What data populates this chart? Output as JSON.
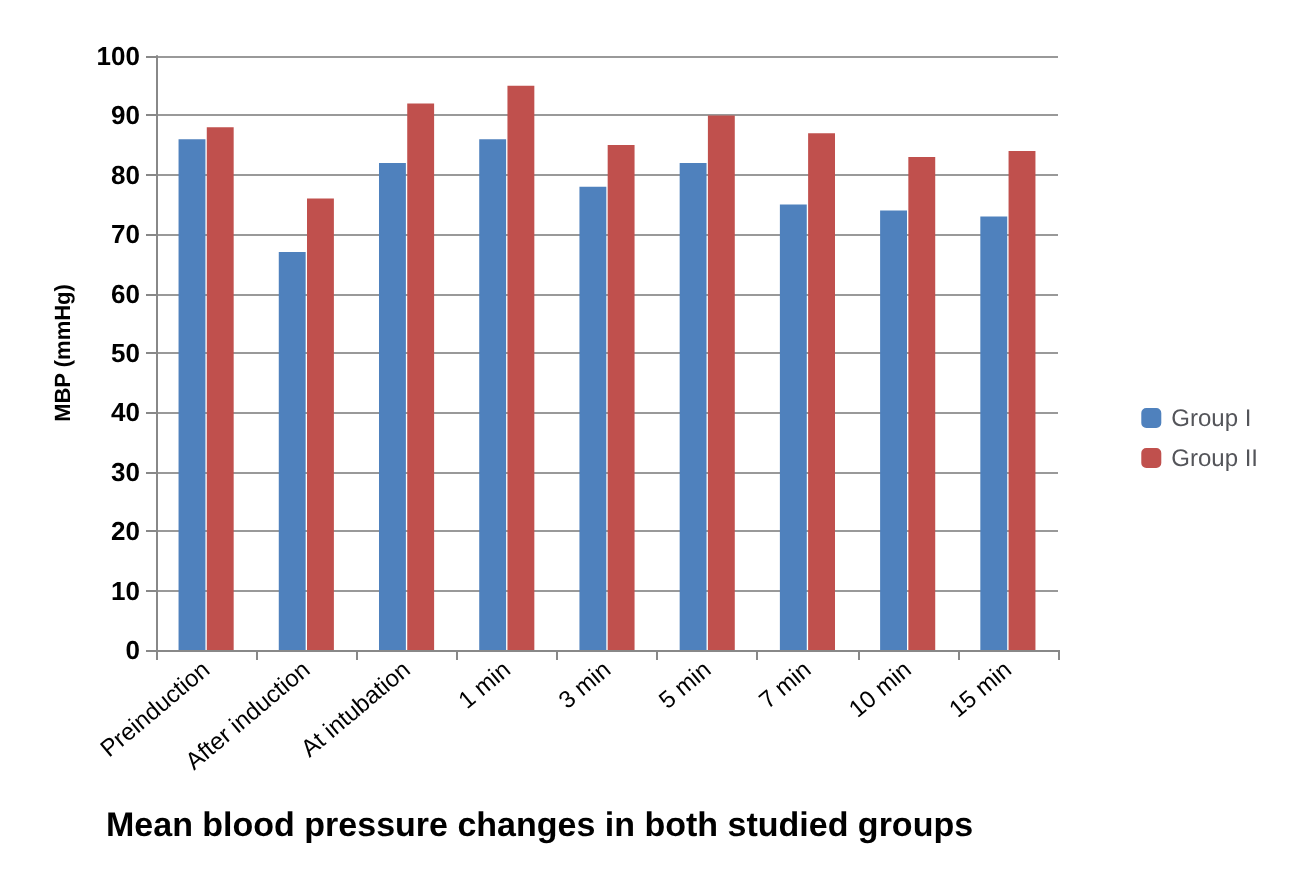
{
  "chart_data": {
    "type": "bar",
    "title": "Mean blood pressure changes in both studied groups",
    "ylabel": "MBP (mmHg)",
    "categories": [
      "Preinduction",
      "After induction",
      "At intubation",
      "1 min",
      "3 min",
      "5 min",
      "7 min",
      "10 min",
      "15 min"
    ],
    "series": [
      {
        "name": "Group I",
        "color": "#4f81bd",
        "values": [
          86,
          67,
          82,
          86,
          78,
          82,
          75,
          74,
          73
        ]
      },
      {
        "name": "Group II",
        "color": "#c0504d",
        "values": [
          88,
          76,
          92,
          95,
          85,
          90,
          87,
          83,
          84
        ]
      }
    ],
    "ylim": [
      0,
      100
    ],
    "yticks": [
      0,
      10,
      20,
      30,
      40,
      50,
      60,
      70,
      80,
      90,
      100
    ],
    "grid": "y",
    "legend": "right"
  }
}
